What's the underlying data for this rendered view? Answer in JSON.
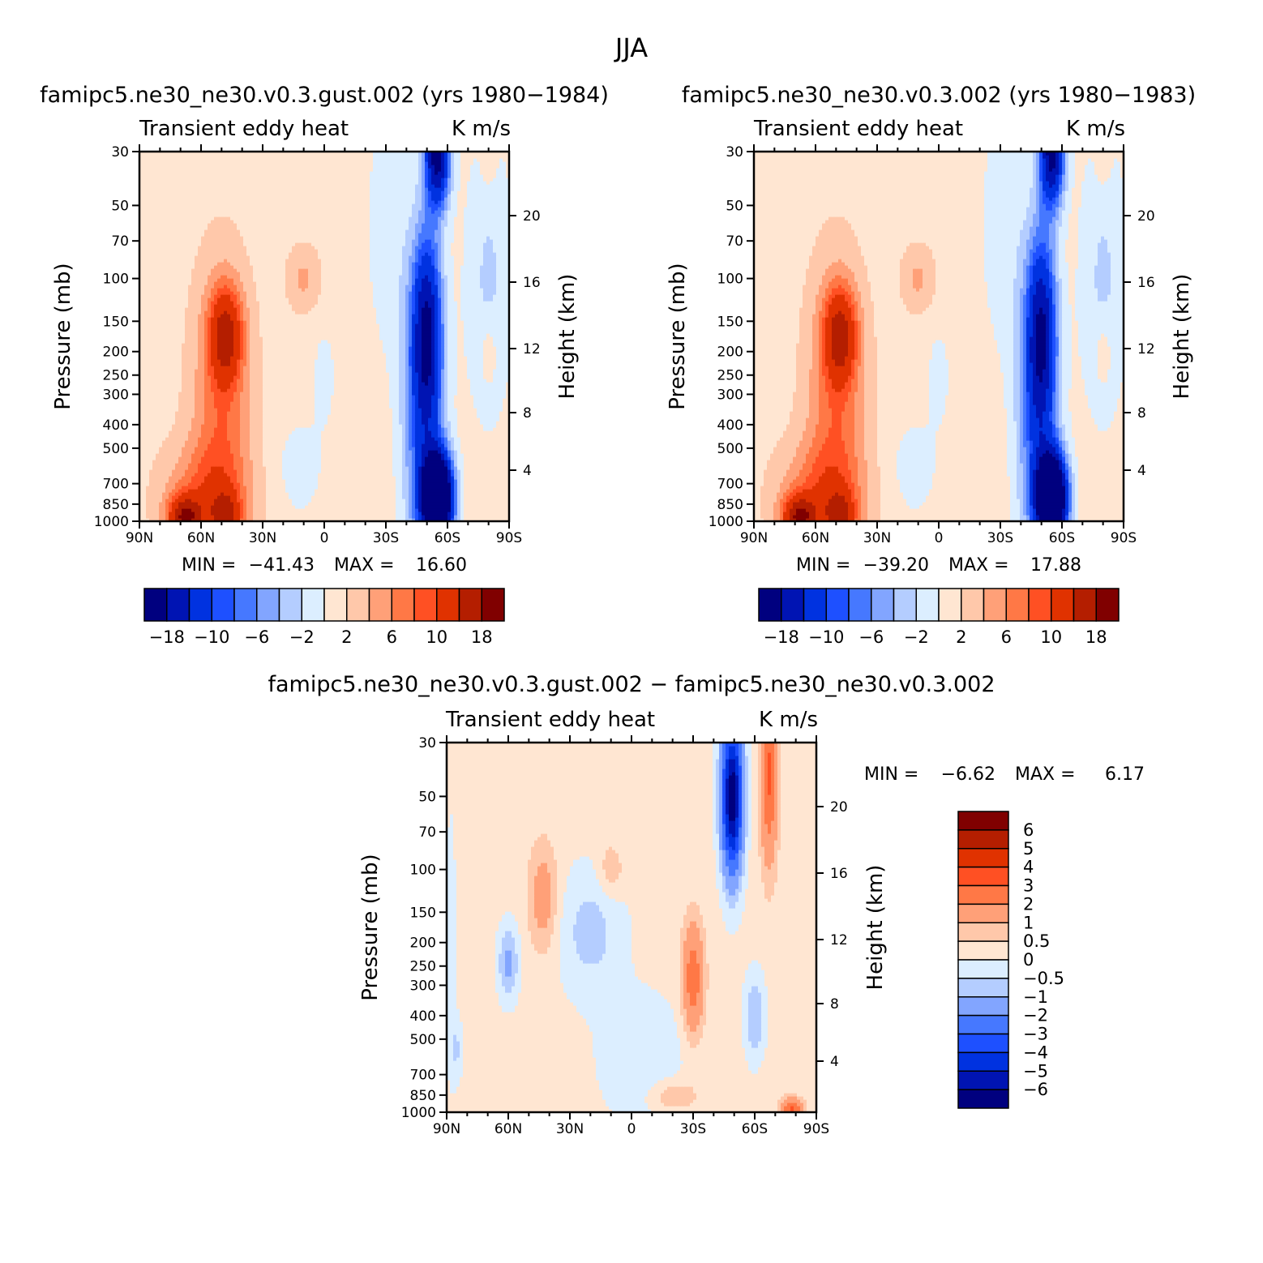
{
  "title": "JJA",
  "panels": [
    {
      "title": "famipc5.ne30_ne30.v0.3.gust.002 (yrs 1980−1984)",
      "left_string": "Transient eddy heat",
      "right_string": "K m/s",
      "stats": {
        "min_label": "MIN =",
        "min": "−41.43",
        "max_label": "MAX =",
        "max": "16.60"
      }
    },
    {
      "title": "famipc5.ne30_ne30.v0.3.002 (yrs 1980−1983)",
      "left_string": "Transient eddy heat",
      "right_string": "K m/s",
      "stats": {
        "min_label": "MIN =",
        "min": "−39.20",
        "max_label": "MAX =",
        "max": "17.88"
      }
    },
    {
      "title": "famipc5.ne30_ne30.v0.3.gust.002 − famipc5.ne30_ne30.v0.3.002",
      "left_string": "Transient eddy heat",
      "right_string": "K m/s",
      "stats": {
        "min_label": "MIN =",
        "min": "−6.62",
        "max_label": "MAX =",
        "max": "6.17"
      }
    }
  ],
  "axes": {
    "ylabel": "Pressure (mb)",
    "ylabel_right": "Height (km)",
    "x_ticks": [
      "90N",
      "60N",
      "30N",
      "0",
      "30S",
      "60S",
      "90S"
    ],
    "y_ticks": [
      "30",
      "50",
      "70",
      "100",
      "150",
      "200",
      "250",
      "300",
      "400",
      "500",
      "700",
      "850",
      "1000"
    ],
    "height_ticks": [
      "20",
      "16",
      "12",
      "8",
      "4"
    ]
  },
  "colorbar_main": {
    "colors": [
      "#00007f",
      "#0014b3",
      "#0032e0",
      "#1e50ff",
      "#4678ff",
      "#82a5ff",
      "#b4cdff",
      "#dceeff",
      "#ffe6d2",
      "#ffc8aa",
      "#ffa078",
      "#ff7846",
      "#ff5023",
      "#e03200",
      "#b41e00",
      "#800000"
    ],
    "labels": [
      "−18",
      "−10",
      "−6",
      "−2",
      "2",
      "6",
      "10",
      "18"
    ]
  },
  "colorbar_diff": {
    "colors": [
      "#00007f",
      "#0014b3",
      "#0032e0",
      "#1e50ff",
      "#4678ff",
      "#82a5ff",
      "#b4cdff",
      "#dceeff",
      "#ffe6d2",
      "#ffc8aa",
      "#ffa078",
      "#ff7846",
      "#ff5023",
      "#e03200",
      "#b41e00",
      "#800000"
    ],
    "labels": [
      "6",
      "5",
      "4",
      "3",
      "2",
      "1",
      "0.5",
      "0",
      "−0.5",
      "−1",
      "−2",
      "−3",
      "−4",
      "−5",
      "−6"
    ]
  },
  "chart_data": [
    {
      "type": "heatmap",
      "title": "famipc5.ne30_ne30.v0.3.gust.002 (yrs 1980−1984)",
      "xlabel": "",
      "ylabel": "Pressure (mb)",
      "x_range": [
        "90N",
        "90S"
      ],
      "y_range": [
        1000,
        30
      ],
      "y_scale": "log",
      "levels": [
        -18,
        -14,
        -10,
        -8,
        -6,
        -4,
        -2,
        0,
        2,
        4,
        6,
        8,
        10,
        14,
        18
      ],
      "min": -41.43,
      "max": 16.6,
      "features": [
        {
          "lat": -55,
          "p": 800,
          "value": -40,
          "sign": "negative"
        },
        {
          "lat": -50,
          "p": 150,
          "value": -18,
          "sign": "negative"
        },
        {
          "lat": 50,
          "p": 160,
          "value": 10,
          "sign": "positive"
        },
        {
          "lat": 70,
          "p": 950,
          "value": 14,
          "sign": "positive"
        }
      ]
    },
    {
      "type": "heatmap",
      "title": "famipc5.ne30_ne30.v0.3.002 (yrs 1980−1983)",
      "xlabel": "",
      "ylabel": "Pressure (mb)",
      "x_range": [
        "90N",
        "90S"
      ],
      "y_range": [
        1000,
        30
      ],
      "y_scale": "log",
      "levels": [
        -18,
        -14,
        -10,
        -8,
        -6,
        -4,
        -2,
        0,
        2,
        4,
        6,
        8,
        10,
        14,
        18
      ],
      "min": -39.2,
      "max": 17.88,
      "features": [
        {
          "lat": -55,
          "p": 800,
          "value": -38,
          "sign": "negative"
        },
        {
          "lat": -50,
          "p": 150,
          "value": -16,
          "sign": "negative"
        },
        {
          "lat": 50,
          "p": 160,
          "value": 10,
          "sign": "positive"
        },
        {
          "lat": 70,
          "p": 950,
          "value": 14,
          "sign": "positive"
        }
      ]
    },
    {
      "type": "heatmap",
      "title": "famipc5.ne30_ne30.v0.3.gust.002 − famipc5.ne30_ne30.v0.3.002",
      "xlabel": "",
      "ylabel": "Pressure (mb)",
      "x_range": [
        "90N",
        "90S"
      ],
      "y_range": [
        1000,
        30
      ],
      "y_scale": "log",
      "levels": [
        -6,
        -5,
        -4,
        -3,
        -2,
        -1,
        -0.5,
        0,
        0.5,
        1,
        2,
        3,
        4,
        5,
        6
      ],
      "min": -6.62,
      "max": 6.17,
      "features": [
        {
          "lat": -48,
          "p": 60,
          "value": -5,
          "sign": "negative"
        },
        {
          "lat": -65,
          "p": 50,
          "value": 2,
          "sign": "positive"
        },
        {
          "lat": -30,
          "p": 250,
          "value": 2.5,
          "sign": "positive"
        },
        {
          "lat": 45,
          "p": 130,
          "value": 1.5,
          "sign": "positive"
        }
      ]
    }
  ]
}
